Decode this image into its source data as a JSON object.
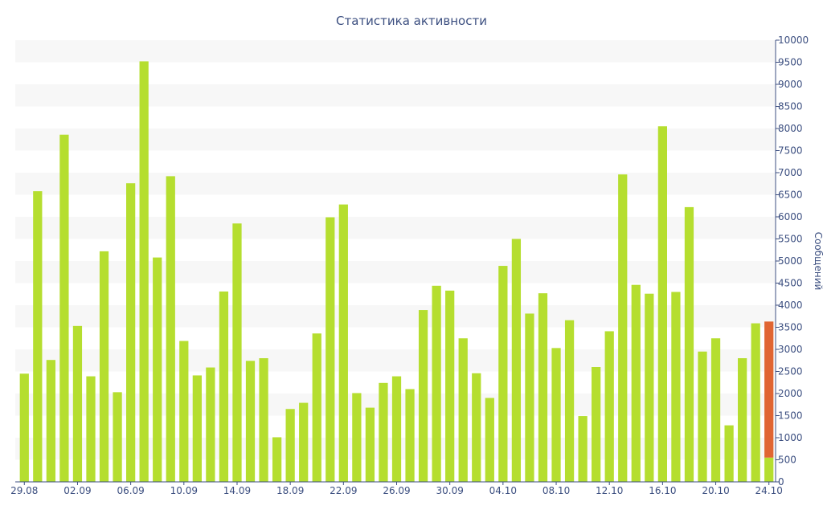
{
  "chart_data": {
    "type": "bar",
    "title": "Статистика активности",
    "ylabel": "Сообщений",
    "xlabel": "",
    "ylim": [
      0,
      10000
    ],
    "y_ticks": [
      0,
      500,
      1000,
      1500,
      2000,
      2500,
      3000,
      3500,
      4000,
      4500,
      5000,
      5500,
      6000,
      6500,
      7000,
      7500,
      8000,
      8500,
      9000,
      9500,
      10000
    ],
    "y_axis_side": "right",
    "grid": "horizontal alternating bands",
    "categories": [
      "29.08",
      "30.08",
      "31.08",
      "01.09",
      "02.09",
      "03.09",
      "04.09",
      "05.09",
      "06.09",
      "07.09",
      "08.09",
      "09.09",
      "10.09",
      "11.09",
      "12.09",
      "13.09",
      "14.09",
      "15.09",
      "16.09",
      "17.09",
      "18.09",
      "19.09",
      "20.09",
      "21.09",
      "22.09",
      "23.09",
      "24.09",
      "25.09",
      "26.09",
      "27.09",
      "28.09",
      "29.09",
      "30.09",
      "01.10",
      "02.10",
      "03.10",
      "04.10",
      "05.10",
      "06.10",
      "07.10",
      "08.10",
      "09.10",
      "10.10",
      "11.10",
      "12.10",
      "13.10",
      "14.10",
      "15.10",
      "16.10",
      "17.10",
      "18.10",
      "19.10",
      "20.10",
      "21.10",
      "22.10",
      "23.10",
      "24.10"
    ],
    "x_tick_labels": [
      "29.08",
      "02.09",
      "06.09",
      "10.09",
      "14.09",
      "18.09",
      "22.09",
      "26.09",
      "30.09",
      "04.10",
      "08.10",
      "12.10",
      "16.10",
      "20.10",
      "24.10"
    ],
    "series": [
      {
        "color": "#b5de2f",
        "values": [
          2450,
          6580,
          2760,
          7860,
          3530,
          2390,
          5220,
          2030,
          6760,
          9520,
          5080,
          6920,
          3190,
          2410,
          2590,
          4310,
          5850,
          2740,
          2800,
          1010,
          1650,
          1790,
          3360,
          5990,
          6280,
          2010,
          1680,
          2240,
          2390,
          2100,
          3890,
          4440,
          4330,
          3250,
          2460,
          1900,
          4890,
          5500,
          3810,
          4270,
          3030,
          3660,
          1490,
          2600,
          3410,
          6960,
          4460,
          4260,
          8050,
          4300,
          6220,
          2950,
          3250,
          1280,
          2800,
          3590,
          550
        ]
      },
      {
        "color": "#e06532",
        "values": [
          0,
          0,
          0,
          0,
          0,
          0,
          0,
          0,
          0,
          0,
          0,
          0,
          0,
          0,
          0,
          0,
          0,
          0,
          0,
          0,
          0,
          0,
          0,
          0,
          0,
          0,
          0,
          0,
          0,
          0,
          0,
          0,
          0,
          0,
          0,
          0,
          0,
          0,
          0,
          0,
          0,
          0,
          0,
          0,
          0,
          0,
          0,
          0,
          0,
          0,
          0,
          0,
          0,
          0,
          0,
          0,
          3080
        ]
      }
    ],
    "band_color": "#f7f7f7",
    "text_color": "#3c4f80"
  }
}
